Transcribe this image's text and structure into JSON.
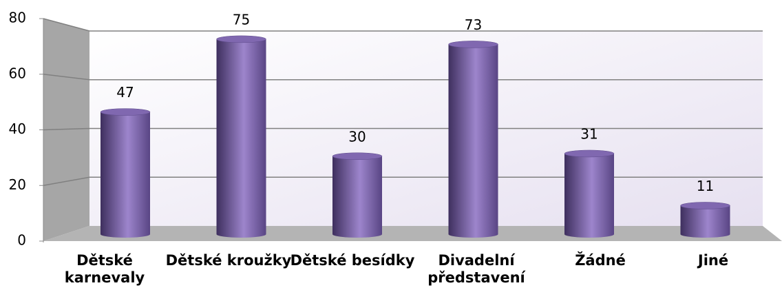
{
  "chart_data": {
    "type": "bar",
    "categories": [
      "Dětské karnevaly",
      "Dětské kroužky",
      "Dětské besídky",
      "Divadelní představení",
      "Žádné",
      "Jiné"
    ],
    "values": [
      47,
      75,
      30,
      73,
      31,
      11
    ],
    "color": "#8068b0",
    "ylim": [
      0,
      80
    ],
    "yticks": [
      0,
      20,
      40,
      60,
      80
    ],
    "grid": true
  }
}
